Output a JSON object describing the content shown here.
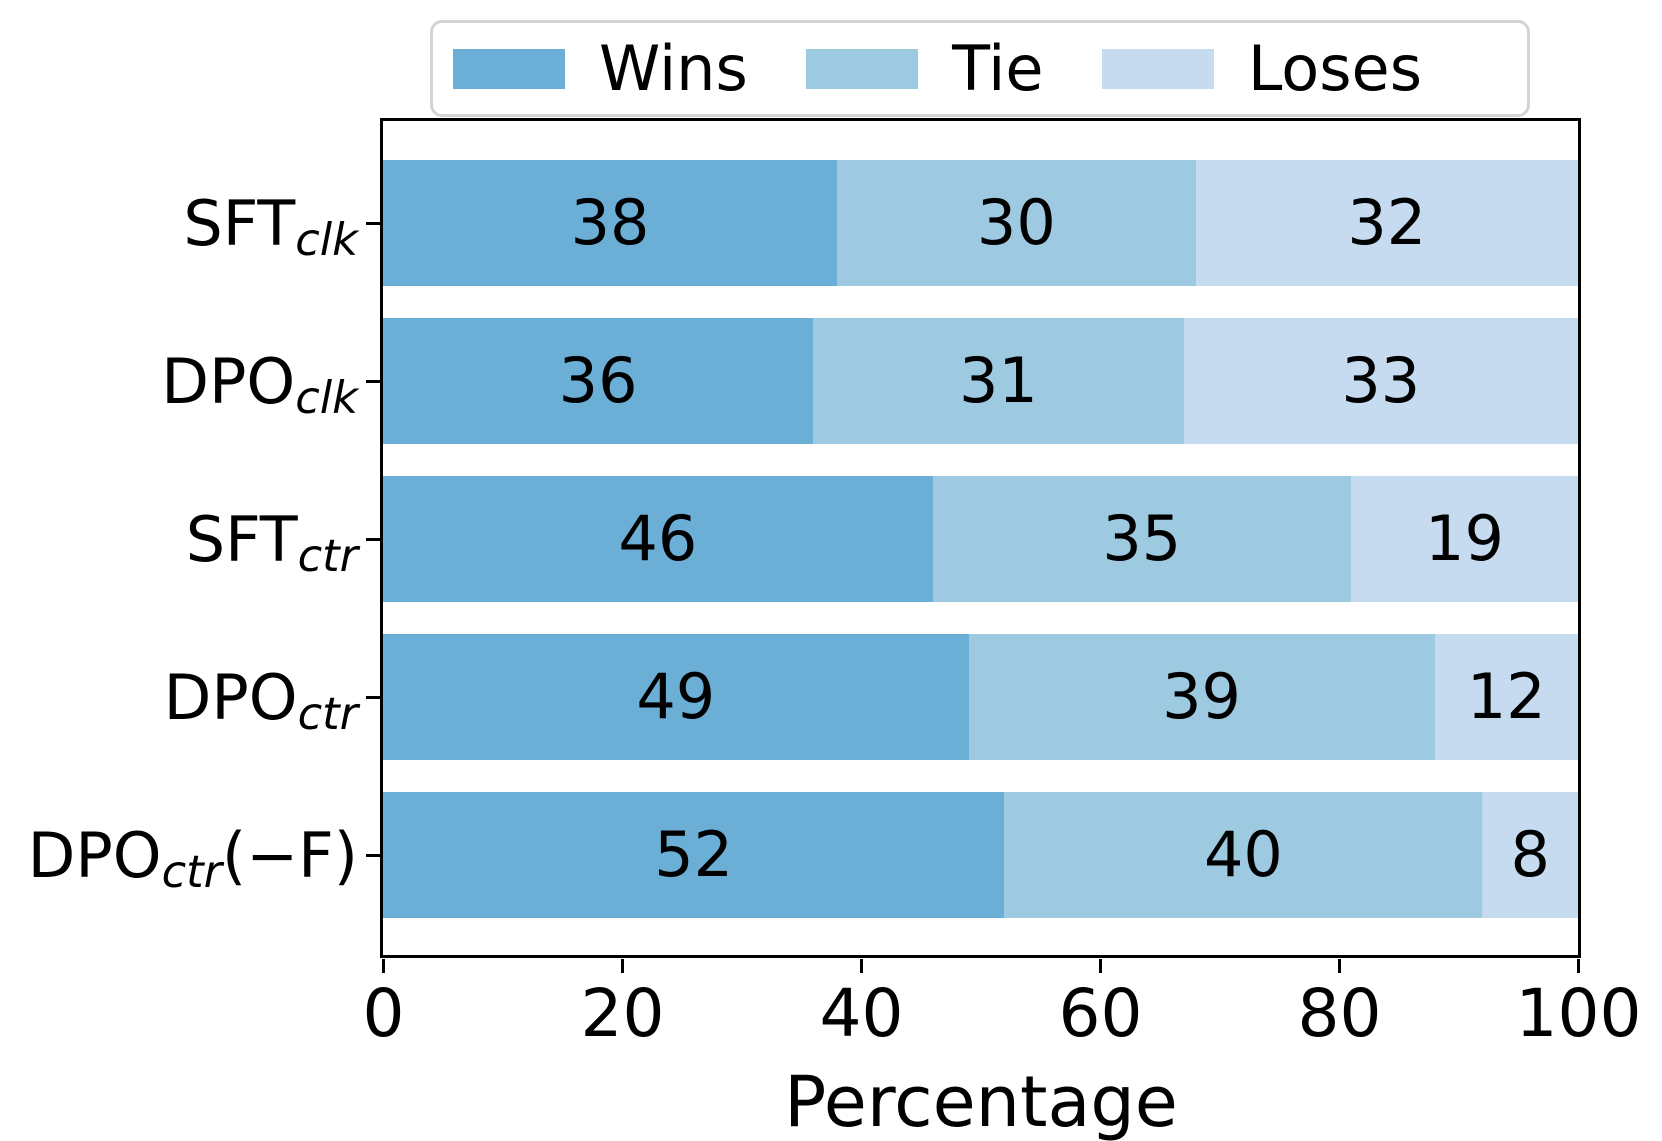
{
  "figure": {
    "background": "#ffffff",
    "text_color": "#000000",
    "spine_color": "#000000",
    "legend_border_color": "#d4d4d4"
  },
  "legend": {
    "position": "top",
    "items": [
      {
        "label": "Wins",
        "color": "#6baed6"
      },
      {
        "label": "Tie",
        "color": "#9ecae1"
      },
      {
        "label": "Loses",
        "color": "#c6dbef"
      }
    ]
  },
  "chart_data": {
    "type": "bar",
    "orientation": "horizontal",
    "stacked": true,
    "title": "",
    "xlabel": "Percentage",
    "ylabel": "",
    "xlim": [
      0,
      100
    ],
    "x_ticks": [
      0,
      20,
      40,
      60,
      80,
      100
    ],
    "grid": false,
    "legend_position": "top",
    "bar_labels_shown": true,
    "categories": [
      "SFT_clk",
      "DPO_clk",
      "SFT_ctr",
      "DPO_ctr",
      "DPO_ctr(−F)"
    ],
    "category_parts": [
      [
        {
          "text": "SFT"
        },
        {
          "text": "clk",
          "sub": true
        }
      ],
      [
        {
          "text": "DPO"
        },
        {
          "text": "clk",
          "sub": true
        }
      ],
      [
        {
          "text": "SFT"
        },
        {
          "text": "ctr",
          "sub": true
        }
      ],
      [
        {
          "text": "DPO"
        },
        {
          "text": "ctr",
          "sub": true
        }
      ],
      [
        {
          "text": "DPO"
        },
        {
          "text": "ctr",
          "sub": true
        },
        {
          "text": "(−F)"
        }
      ]
    ],
    "series": [
      {
        "name": "Wins",
        "color": "#6baed6",
        "values": [
          38,
          36,
          46,
          49,
          52
        ]
      },
      {
        "name": "Tie",
        "color": "#9ecae1",
        "values": [
          30,
          31,
          35,
          39,
          40
        ]
      },
      {
        "name": "Loses",
        "color": "#c6dbef",
        "values": [
          32,
          33,
          19,
          12,
          8
        ]
      }
    ]
  }
}
